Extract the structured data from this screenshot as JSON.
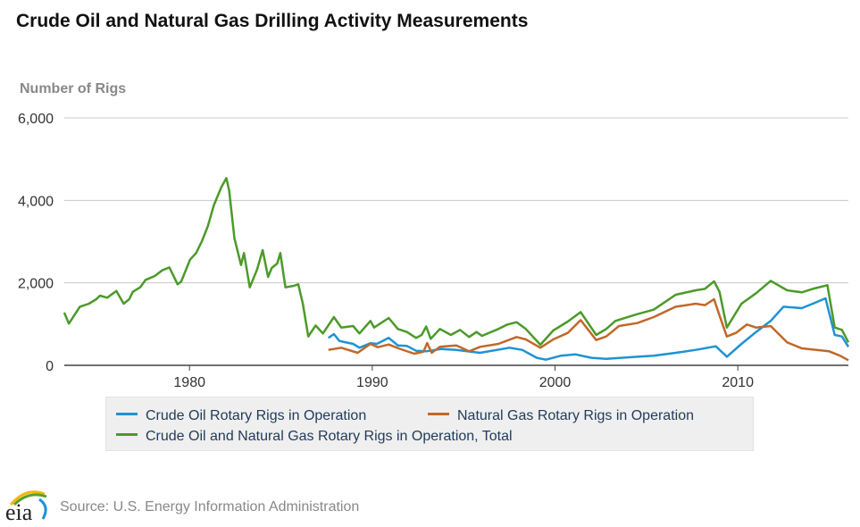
{
  "title": "Crude Oil and Natural Gas Drilling Activity Measurements",
  "source": "Source: U.S. Energy Information Administration",
  "logo_text": "eia",
  "chart_data": {
    "type": "line",
    "title": "Crude Oil and Natural Gas Drilling Activity Measurements",
    "ylabel": "Number of Rigs",
    "xlabel": "",
    "xlim": [
      1973.15,
      2016.05
    ],
    "ylim": [
      0,
      6000
    ],
    "yticks": [
      0,
      2000,
      4000,
      6000
    ],
    "ytick_labels": [
      "0",
      "2,000",
      "4,000",
      "6,000"
    ],
    "xticks": [
      1980,
      1990,
      2000,
      2010
    ],
    "xtick_labels": [
      "1980",
      "1990",
      "2000",
      "2010"
    ],
    "grid": true,
    "legend_placement": "bottom",
    "series": [
      {
        "name": "Crude Oil Rotary Rigs in Operation",
        "color": "#1d93d3",
        "x": [
          1987.6,
          1987.9,
          1988.2,
          1988.95,
          1989.3,
          1989.9,
          1990.25,
          1990.9,
          1991.4,
          1991.9,
          1992.4,
          1992.95,
          1993.8,
          1994.6,
          1995.9,
          1997.5,
          1998.2,
          1999.0,
          1999.5,
          2000.3,
          2001.1,
          2002.0,
          2002.8,
          2004.5,
          2005.4,
          2006.6,
          2007.7,
          2008.8,
          2009.4,
          2010.2,
          2011.0,
          2011.8,
          2012.5,
          2013.5,
          2014.1,
          2014.8,
          2015.3,
          2015.7,
          2016.05
        ],
        "y": [
          664,
          758,
          592,
          520,
          426,
          534,
          520,
          664,
          484,
          469,
          354,
          339,
          397,
          375,
          303,
          426,
          375,
          181,
          137,
          231,
          267,
          181,
          159,
          209,
          231,
          303,
          375,
          462,
          209,
          520,
          809,
          1076,
          1422,
          1386,
          1494,
          1625,
          736,
          700,
          448
        ]
      },
      {
        "name": "Natural Gas Rotary Rigs in Operation",
        "color": "#c0682a",
        "x": [
          1987.6,
          1988.3,
          1989.2,
          1989.9,
          1990.3,
          1990.9,
          1991.5,
          1992.3,
          1992.8,
          1993.0,
          1993.25,
          1993.7,
          1994.6,
          1995.3,
          1995.9,
          1996.9,
          1997.9,
          1998.4,
          1999.2,
          1999.9,
          2000.7,
          2001.4,
          2002.25,
          2002.8,
          2003.5,
          2004.5,
          2005.4,
          2006.6,
          2007.7,
          2008.2,
          2008.7,
          2009.0,
          2009.4,
          2009.9,
          2010.5,
          2011.0,
          2011.8,
          2012.7,
          2013.5,
          2014.3,
          2015.0,
          2015.6,
          2016.05
        ],
        "y": [
          375,
          426,
          303,
          520,
          440,
          505,
          400,
          282,
          330,
          541,
          303,
          448,
          484,
          339,
          448,
          520,
          686,
          628,
          426,
          628,
          787,
          1097,
          614,
          700,
          953,
          1025,
          1170,
          1422,
          1494,
          1458,
          1603,
          1206,
          700,
          787,
          989,
          917,
          953,
          556,
          412,
          375,
          339,
          231,
          123
        ]
      },
      {
        "name": "Crude Oil and Natural Gas Rotary Rigs in Operation, Total",
        "color": "#4b9a2a",
        "x": [
          1973.15,
          1973.4,
          1974.0,
          1974.5,
          1974.9,
          1975.1,
          1975.5,
          1976.0,
          1976.4,
          1976.7,
          1976.9,
          1977.3,
          1977.6,
          1978.1,
          1978.5,
          1978.9,
          1979.35,
          1979.55,
          1980.03,
          1980.36,
          1980.68,
          1981.0,
          1981.33,
          1981.73,
          1982.02,
          1982.17,
          1982.46,
          1982.82,
          1982.98,
          1983.3,
          1983.7,
          1984.0,
          1984.3,
          1984.5,
          1984.8,
          1984.97,
          1985.25,
          1985.7,
          1985.95,
          1986.2,
          1986.5,
          1986.9,
          1987.3,
          1987.9,
          1988.3,
          1988.95,
          1989.3,
          1989.9,
          1990.1,
          1990.9,
          1991.4,
          1991.9,
          1992.4,
          1992.7,
          1992.95,
          1993.2,
          1993.7,
          1994.3,
          1994.8,
          1995.3,
          1995.7,
          1996.0,
          1996.9,
          1997.4,
          1997.9,
          1998.4,
          1999.2,
          1999.9,
          2000.7,
          2001.4,
          2002.25,
          2002.8,
          2003.3,
          2004.5,
          2005.4,
          2006.6,
          2007.7,
          2008.2,
          2008.7,
          2009.0,
          2009.4,
          2010.2,
          2011.0,
          2011.8,
          2012.7,
          2013.5,
          2014.1,
          2014.9,
          2015.3,
          2015.7,
          2016.05
        ],
        "y": [
          1278,
          1011,
          1422,
          1494,
          1603,
          1690,
          1639,
          1805,
          1494,
          1603,
          1783,
          1892,
          2072,
          2166,
          2303,
          2375,
          1964,
          2036,
          2563,
          2722,
          3011,
          3372,
          3877,
          4310,
          4541,
          4238,
          3083,
          2433,
          2722,
          1892,
          2325,
          2794,
          2144,
          2361,
          2469,
          2722,
          1892,
          1928,
          1964,
          1494,
          700,
          967,
          773,
          1170,
          917,
          953,
          773,
          1076,
          917,
          1148,
          881,
          809,
          664,
          736,
          939,
          643,
          881,
          736,
          859,
          686,
          809,
          715,
          881,
          989,
          1047,
          881,
          498,
          845,
          1061,
          1292,
          736,
          881,
          1076,
          1242,
          1350,
          1711,
          1819,
          1855,
          2036,
          1783,
          917,
          1494,
          1747,
          2050,
          1819,
          1769,
          1855,
          1942,
          917,
          859,
          556
        ]
      }
    ]
  }
}
